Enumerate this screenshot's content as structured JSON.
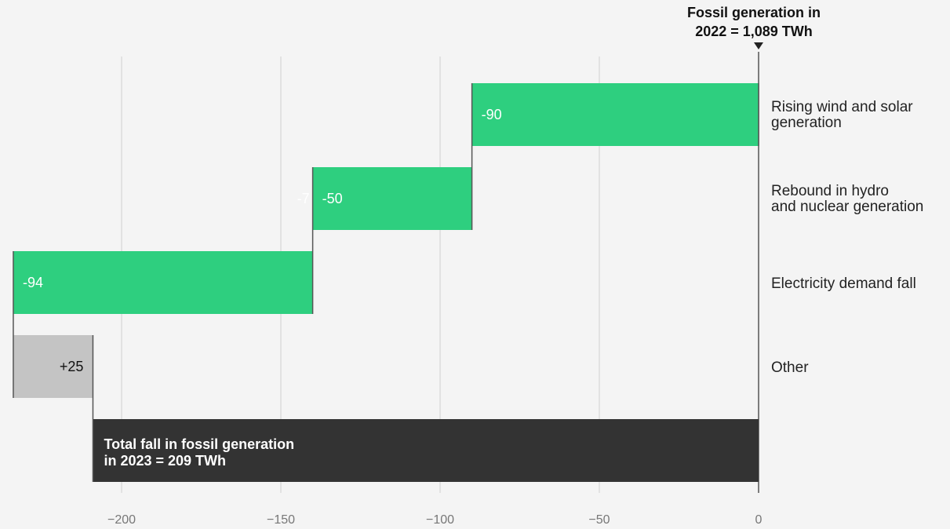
{
  "chart_data": {
    "type": "bar",
    "orientation": "horizontal-waterfall",
    "start_annotation": [
      "Fossil generation in",
      "2022 = 1,089 TWh"
    ],
    "categories": [
      [
        "Rising wind and solar",
        "generation"
      ],
      [
        "Rebound in hydro",
        "and nuclear generation"
      ],
      [
        "Electricity demand fall"
      ],
      [
        "Other"
      ]
    ],
    "steps": [
      {
        "value": -90,
        "label": "-90",
        "color": "#2ecf7f",
        "label_color": "#ffffff"
      },
      {
        "value": -50,
        "label": "-50",
        "color": "#2ecf7f",
        "label_color": "#ffffff",
        "faded_label": "-7"
      },
      {
        "value": -94,
        "label": "-94",
        "color": "#2ecf7f",
        "label_color": "#ffffff"
      },
      {
        "value": 25,
        "label": "+25",
        "color": "#c4c4c4",
        "label_color": "#111111"
      }
    ],
    "total": {
      "value": -209,
      "label": [
        "Total fall in fossil generation",
        "in 2023 = 209 TWh"
      ],
      "color": "#333333"
    },
    "xticks": [
      -200,
      -150,
      -100,
      -50,
      0
    ],
    "xtick_labels": [
      "−200",
      "−150",
      "−100",
      "−50",
      "0"
    ],
    "xlim": [
      -234,
      0
    ],
    "grid": true,
    "xlabel": "",
    "ylabel": ""
  }
}
